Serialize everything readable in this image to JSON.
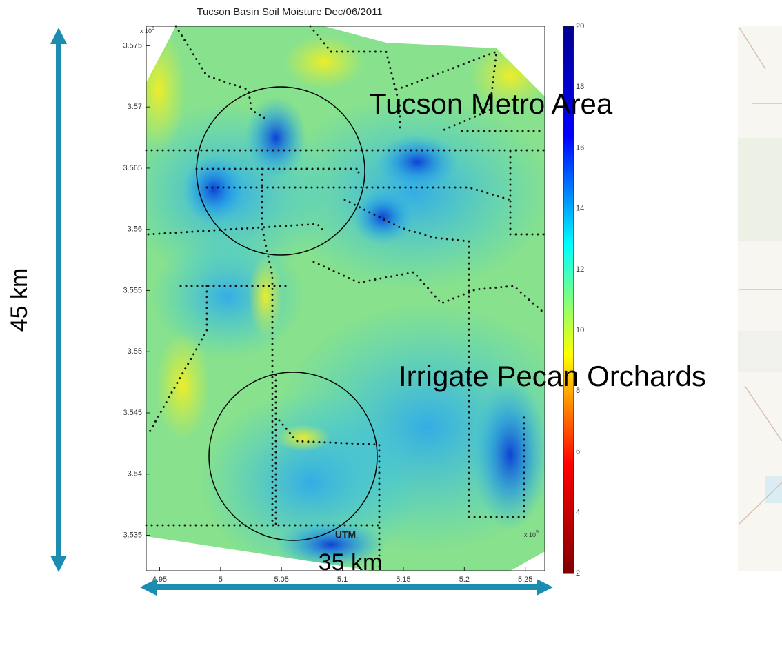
{
  "chart_data": {
    "type": "map",
    "title": "Tucson Basin Soil Moisture Dec/06/2011",
    "x_label": "UTM",
    "x_multiplier": {
      "base": "x 10",
      "exponent": "5"
    },
    "y_multiplier": {
      "base": "x 10",
      "exponent": "6"
    },
    "xlim": [
      4.939,
      5.266
    ],
    "xticks": [
      4.95,
      5,
      5.05,
      5.1,
      5.15,
      5.2,
      5.25
    ],
    "ylim": [
      3.5321,
      3.5766
    ],
    "yticks": [
      3.535,
      3.54,
      3.545,
      3.55,
      3.555,
      3.56,
      3.565,
      3.57,
      3.575
    ],
    "colorbar": {
      "clim": [
        2,
        20
      ],
      "ticks": [
        2,
        4,
        6,
        8,
        10,
        12,
        14,
        16,
        18,
        20
      ],
      "colormap": [
        "#800000",
        "#ff0000",
        "#ffff00",
        "#00ffff",
        "#0000ff",
        "#00008f"
      ]
    },
    "annotations": [
      "Tucson Metro Area",
      "Irrigate Pecan Orchards"
    ],
    "height_label": "45 km",
    "width_label": "35 km"
  }
}
